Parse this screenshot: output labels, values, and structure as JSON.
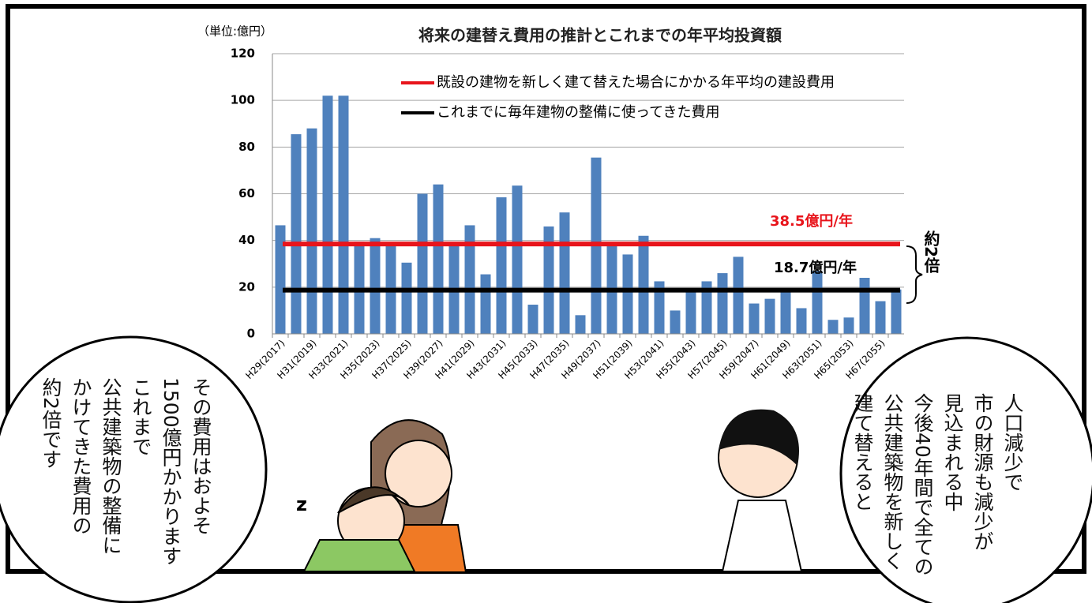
{
  "chart_data": {
    "type": "bar",
    "title": "将来の建替え費用の推計とこれまでの年平均投資額",
    "unit_label": "（単位:億円）",
    "categories": [
      "H29(2017)",
      null,
      "H31(2019)",
      null,
      "H33(2021)",
      null,
      "H35(2023)",
      null,
      "H37(2025)",
      null,
      "H39(2027)",
      null,
      "H41(2029)",
      null,
      "H43(2031)",
      null,
      "H45(2033)",
      null,
      "H47(2035)",
      null,
      "H49(2037)",
      null,
      "H51(2039)",
      null,
      "H53(2041)",
      null,
      "H55(2043)",
      null,
      "H57(2045)",
      null,
      "H59(2047)",
      null,
      "H61(2049)",
      null,
      "H63(2051)",
      null,
      "H65(2053)",
      null,
      "H67(2055)",
      null
    ],
    "values": [
      46.5,
      85.5,
      88,
      102,
      102,
      39.5,
      41,
      38,
      30.5,
      60,
      64,
      38,
      46.5,
      25.5,
      58.5,
      63.5,
      12.5,
      46,
      52,
      8,
      75.5,
      38,
      34,
      42,
      22.5,
      10,
      19,
      22.5,
      26,
      33,
      13,
      15,
      19,
      11,
      27,
      6,
      7,
      24,
      14,
      19
    ],
    "color": "#4f81bd",
    "ylim": [
      0,
      120
    ],
    "yticks": [
      0,
      20,
      40,
      60,
      80,
      100,
      120
    ],
    "grid": true,
    "reference_lines": [
      {
        "name": "既設の建物を新しく建て替えた場合にかかる年平均の建設費用",
        "value": 38.5,
        "label": "38.5億円/年",
        "color": "#e8141b"
      },
      {
        "name": "これまでに毎年建物の整備に使ってきた費用",
        "value": 18.7,
        "label": "18.7億円/年",
        "color": "#000000"
      }
    ],
    "ratio_note": "約2倍"
  },
  "speech_bubbles": {
    "left": [
      "その費用はおよそ",
      "1500億円かかります",
      "これまで",
      "公共建築物の整備に",
      "かけてきた費用の",
      "約2倍です"
    ],
    "right": [
      "人口減少で",
      "市の財源も減少が",
      "見込まれる中",
      "今後40年間で全ての",
      "公共建築物を新しく",
      "建て替えると"
    ]
  }
}
